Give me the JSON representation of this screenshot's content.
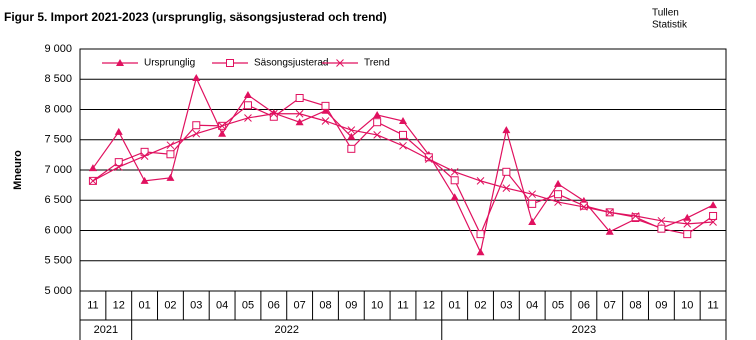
{
  "chart_data": {
    "type": "line",
    "title": "Figur 5. Import 2021-2023  (ursprunglig, säsongsjusterad  och trend)",
    "source": [
      "Tullen",
      "Statistik"
    ],
    "ylabel": "Mneuro",
    "categories": [
      "11",
      "12",
      "01",
      "02",
      "03",
      "04",
      "05",
      "06",
      "07",
      "08",
      "09",
      "10",
      "11",
      "12",
      "01",
      "02",
      "03",
      "04",
      "05",
      "06",
      "07",
      "08",
      "09",
      "10",
      "11"
    ],
    "years": [
      "2021",
      "2021",
      "2022",
      "2022",
      "2022",
      "2022",
      "2022",
      "2022",
      "2022",
      "2022",
      "2022",
      "2022",
      "2022",
      "2022",
      "2023",
      "2023",
      "2023",
      "2023",
      "2023",
      "2023",
      "2023",
      "2023",
      "2023",
      "2023",
      "2023"
    ],
    "series": [
      {
        "name": "Ursprunglig",
        "color": "#e0115f",
        "marker": "triangle",
        "values": [
          7030,
          7630,
          6820,
          6870,
          8520,
          7600,
          8240,
          7940,
          7790,
          7980,
          7550,
          7910,
          7810,
          7250,
          6550,
          5640,
          7660,
          6140,
          6770,
          6490,
          5980,
          6190,
          6040,
          6210,
          6420
        ]
      },
      {
        "name": "Säsongsjusterad",
        "color": "#e0115f",
        "marker": "square",
        "values": [
          6820,
          7130,
          7300,
          7260,
          7740,
          7730,
          8070,
          7880,
          8190,
          8060,
          7350,
          7790,
          7580,
          7210,
          6830,
          5940,
          6970,
          6440,
          6600,
          6410,
          6300,
          6220,
          6030,
          5940,
          6240
        ]
      },
      {
        "name": "Trend",
        "color": "#e0115f",
        "marker": "x",
        "values": [
          6820,
          7050,
          7230,
          7410,
          7600,
          7730,
          7860,
          7930,
          7930,
          7810,
          7660,
          7580,
          7400,
          7180,
          6970,
          6820,
          6700,
          6600,
          6470,
          6390,
          6300,
          6240,
          6160,
          6110,
          6140
        ]
      }
    ],
    "ylim": [
      5000,
      9000
    ],
    "yticks": [
      {
        "value": 5000,
        "label": "5 000"
      },
      {
        "value": 5500,
        "label": "5 500"
      },
      {
        "value": 6000,
        "label": "6 000"
      },
      {
        "value": 6500,
        "label": "6 500"
      },
      {
        "value": 7000,
        "label": "7 000"
      },
      {
        "value": 7500,
        "label": "7 500"
      },
      {
        "value": 8000,
        "label": "8 000"
      },
      {
        "value": 8500,
        "label": "8 500"
      },
      {
        "value": 9000,
        "label": "9 000"
      }
    ],
    "grid": true,
    "legend": "upper left"
  }
}
